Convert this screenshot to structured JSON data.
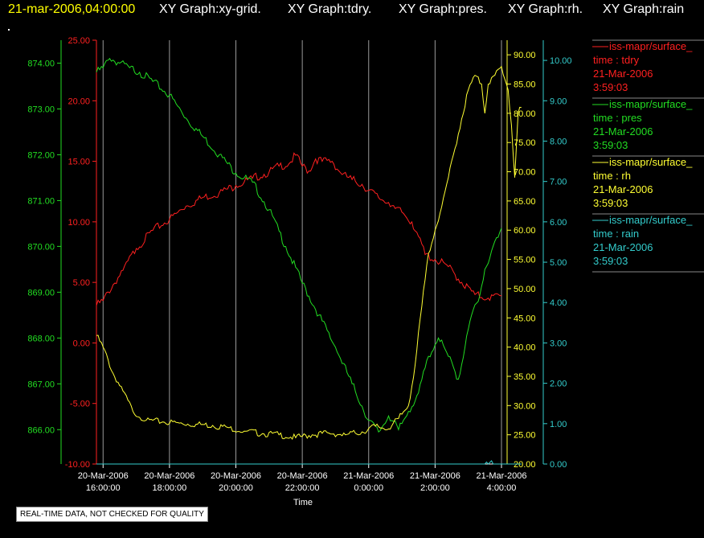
{
  "header": {
    "timestamp": "21-mar-2006,04:00:00",
    "graphs": [
      "XY Graph:xy-grid.",
      "XY Graph:tdry.",
      "XY Graph:pres.",
      "XY Graph:rh.",
      "XY Graph:rain"
    ],
    "dot": "."
  },
  "footer_note": "REAL-TIME DATA, NOT CHECKED FOR QUALITY",
  "colors": {
    "background": "#000000",
    "timestamp": "#ffff00",
    "title": "#ffffff",
    "tdry": "#ff2020",
    "pres": "#22dd22",
    "rh": "#ffff33",
    "rain": "#33cccc",
    "grid": "#9a9a9a"
  },
  "chart_data": {
    "type": "line",
    "xlabel": "Time",
    "x_ticks": [
      {
        "date": "20-Mar-2006",
        "time": "16:00:00"
      },
      {
        "date": "20-Mar-2006",
        "time": "18:00:00"
      },
      {
        "date": "20-Mar-2006",
        "time": "20:00:00"
      },
      {
        "date": "20-Mar-2006",
        "time": "22:00:00"
      },
      {
        "date": "21-Mar-2006",
        "time": "0:00:00"
      },
      {
        "date": "21-Mar-2006",
        "time": "2:00:00"
      },
      {
        "date": "21-Mar-2006",
        "time": "4:00:00"
      }
    ],
    "x_range_hours": [
      15.8,
      28.0
    ],
    "grid": "vertical",
    "axes": {
      "pres": {
        "range": [
          865.25,
          874.5
        ],
        "ticks": [
          "866.00",
          "867.00",
          "868.00",
          "869.00",
          "870.00",
          "871.00",
          "872.00",
          "873.00",
          "874.00"
        ],
        "side": "left-outer"
      },
      "tdry": {
        "range": [
          -10,
          25
        ],
        "ticks": [
          "-10.00",
          "-5.00",
          "0.00",
          "5.00",
          "10.00",
          "15.00",
          "20.00",
          "25.00"
        ],
        "side": "left-inner"
      },
      "rh": {
        "range": [
          20,
          92.5
        ],
        "ticks": [
          "20.00",
          "25.00",
          "30.00",
          "35.00",
          "40.00",
          "45.00",
          "50.00",
          "55.00",
          "60.00",
          "65.00",
          "70.00",
          "75.00",
          "80.00",
          "85.00",
          "90.00"
        ],
        "side": "right-inner"
      },
      "rain": {
        "range": [
          0,
          10.5
        ],
        "ticks": [
          "0.00",
          "1.00",
          "2.00",
          "3.00",
          "4.00",
          "5.00",
          "6.00",
          "7.00",
          "8.00",
          "9.00",
          "10.00"
        ],
        "side": "right-outer"
      }
    },
    "legend_position": "right",
    "series": [
      {
        "key": "tdry",
        "legend_name": "iss-mapr/surface_",
        "legend_var": "time : tdry",
        "legend_date": "21-Mar-2006",
        "legend_time": "3:59:03",
        "points": [
          [
            15.8,
            3.1
          ],
          [
            16.0,
            3.5
          ],
          [
            16.3,
            4.8
          ],
          [
            16.6,
            6.0
          ],
          [
            17.0,
            7.8
          ],
          [
            17.5,
            9.3
          ],
          [
            18.0,
            10.2
          ],
          [
            18.5,
            11.3
          ],
          [
            19.0,
            12.0
          ],
          [
            19.5,
            12.4
          ],
          [
            20.0,
            13.0
          ],
          [
            20.5,
            13.6
          ],
          [
            21.0,
            14.1
          ],
          [
            21.3,
            14.6
          ],
          [
            21.6,
            14.8
          ],
          [
            21.8,
            15.5
          ],
          [
            22.0,
            14.6
          ],
          [
            22.2,
            14.2
          ],
          [
            22.4,
            15.2
          ],
          [
            22.6,
            15.0
          ],
          [
            22.9,
            15.0
          ],
          [
            23.2,
            13.9
          ],
          [
            23.5,
            13.5
          ],
          [
            23.8,
            13.1
          ],
          [
            24.0,
            12.6
          ],
          [
            24.3,
            12.0
          ],
          [
            24.6,
            11.6
          ],
          [
            24.8,
            11.1
          ],
          [
            25.0,
            10.8
          ],
          [
            25.3,
            10.0
          ],
          [
            25.5,
            8.8
          ],
          [
            25.7,
            7.3
          ],
          [
            26.0,
            6.9
          ],
          [
            26.4,
            6.3
          ],
          [
            26.8,
            5.0
          ],
          [
            27.2,
            4.0
          ],
          [
            27.6,
            3.7
          ],
          [
            28.0,
            3.9
          ]
        ]
      },
      {
        "key": "pres",
        "legend_name": "iss-mapr/surface_",
        "legend_var": "time : pres",
        "legend_date": "21-Mar-2006",
        "legend_time": "3:59:03",
        "points": [
          [
            15.8,
            873.8
          ],
          [
            16.0,
            873.9
          ],
          [
            16.2,
            874.1
          ],
          [
            16.5,
            874.0
          ],
          [
            16.8,
            873.9
          ],
          [
            17.1,
            873.8
          ],
          [
            17.5,
            873.6
          ],
          [
            18.0,
            873.3
          ],
          [
            18.5,
            872.8
          ],
          [
            19.0,
            872.4
          ],
          [
            19.5,
            872.0
          ],
          [
            20.0,
            871.6
          ],
          [
            20.5,
            871.4
          ],
          [
            21.0,
            870.8
          ],
          [
            21.5,
            870.0
          ],
          [
            22.0,
            869.2
          ],
          [
            22.5,
            868.5
          ],
          [
            23.0,
            867.8
          ],
          [
            23.5,
            867.0
          ],
          [
            24.0,
            866.2
          ],
          [
            24.3,
            865.95
          ],
          [
            24.6,
            866.3
          ],
          [
            24.9,
            866.0
          ],
          [
            25.2,
            866.4
          ],
          [
            25.5,
            866.8
          ],
          [
            25.8,
            867.6
          ],
          [
            26.1,
            868.0
          ],
          [
            26.4,
            867.6
          ],
          [
            26.7,
            867.1
          ],
          [
            26.9,
            867.8
          ],
          [
            27.1,
            868.5
          ],
          [
            27.3,
            868.8
          ],
          [
            27.5,
            869.5
          ],
          [
            27.7,
            869.9
          ],
          [
            27.9,
            870.2
          ],
          [
            28.0,
            870.4
          ]
        ]
      },
      {
        "key": "rh",
        "legend_name": "iss-mapr/surface_",
        "legend_var": "time : rh",
        "legend_date": "21-Mar-2006",
        "legend_time": "3:59:03",
        "points": [
          [
            15.8,
            42.0
          ],
          [
            16.0,
            40.0
          ],
          [
            16.3,
            35.5
          ],
          [
            16.6,
            32.5
          ],
          [
            16.9,
            29.0
          ],
          [
            17.3,
            27.5
          ],
          [
            17.8,
            27.2
          ],
          [
            18.3,
            27.0
          ],
          [
            18.8,
            26.8
          ],
          [
            19.3,
            26.6
          ],
          [
            19.8,
            26.2
          ],
          [
            20.3,
            25.6
          ],
          [
            20.8,
            25.2
          ],
          [
            21.3,
            25.0
          ],
          [
            21.8,
            24.5
          ],
          [
            22.3,
            25.0
          ],
          [
            22.8,
            25.3
          ],
          [
            23.3,
            25.0
          ],
          [
            23.8,
            25.5
          ],
          [
            24.2,
            26.5
          ],
          [
            24.6,
            26.0
          ],
          [
            24.9,
            27.8
          ],
          [
            25.2,
            30.0
          ],
          [
            25.4,
            37.0
          ],
          [
            25.6,
            47.0
          ],
          [
            25.8,
            56.0
          ],
          [
            26.0,
            60.0
          ],
          [
            26.2,
            64.0
          ],
          [
            26.4,
            69.0
          ],
          [
            26.6,
            74.0
          ],
          [
            26.8,
            79.0
          ],
          [
            27.0,
            84.0
          ],
          [
            27.2,
            86.5
          ],
          [
            27.4,
            85.0
          ],
          [
            27.5,
            80.0
          ],
          [
            27.6,
            85.0
          ],
          [
            27.8,
            86.5
          ],
          [
            28.0,
            88.0
          ],
          [
            28.2,
            84.0
          ],
          [
            28.3,
            78.0
          ],
          [
            28.4,
            69.0
          ],
          [
            28.5,
            80.0
          ],
          [
            28.6,
            81.0
          ]
        ]
      },
      {
        "key": "rain",
        "legend_name": "iss-mapr/surface_",
        "legend_var": "time : rain",
        "legend_date": "21-Mar-2006",
        "legend_time": "3:59:03",
        "points": [
          [
            15.8,
            0.0
          ],
          [
            27.5,
            0.0
          ],
          [
            27.55,
            0.05
          ],
          [
            27.6,
            0.0
          ],
          [
            27.7,
            0.08
          ],
          [
            27.75,
            0.0
          ],
          [
            28.6,
            0.0
          ]
        ]
      }
    ]
  }
}
